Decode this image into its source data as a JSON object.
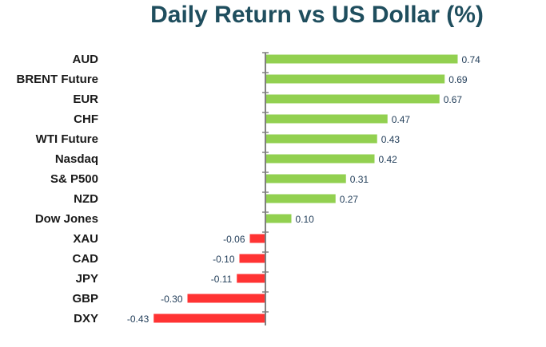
{
  "chart_data": {
    "type": "bar",
    "orientation": "horizontal",
    "title": "Daily Return vs US Dollar (%)",
    "xlabel": "",
    "ylabel": "",
    "categories": [
      "AUD",
      "BRENT Future",
      "EUR",
      "CHF",
      "WTI Future",
      "Nasdaq",
      "S& P500",
      "NZD",
      "Dow Jones",
      "XAU",
      "CAD",
      "JPY",
      "GBP",
      "DXY"
    ],
    "values": [
      0.74,
      0.69,
      0.67,
      0.47,
      0.43,
      0.42,
      0.31,
      0.27,
      0.1,
      -0.06,
      -0.1,
      -0.11,
      -0.3,
      -0.43
    ],
    "value_labels": [
      "0.74",
      "0.69",
      "0.67",
      "0.47",
      "0.43",
      "0.42",
      "0.31",
      "0.27",
      "0.10",
      "-0.06",
      "-0.10",
      "-0.11",
      "-0.30",
      "-0.43"
    ],
    "colors": {
      "positive": "#92d050",
      "negative": "#ff3333",
      "title": "#1f4e5e",
      "value_label": "#1f3b57",
      "axis": "#808080"
    },
    "grid": false,
    "legend": "none"
  }
}
